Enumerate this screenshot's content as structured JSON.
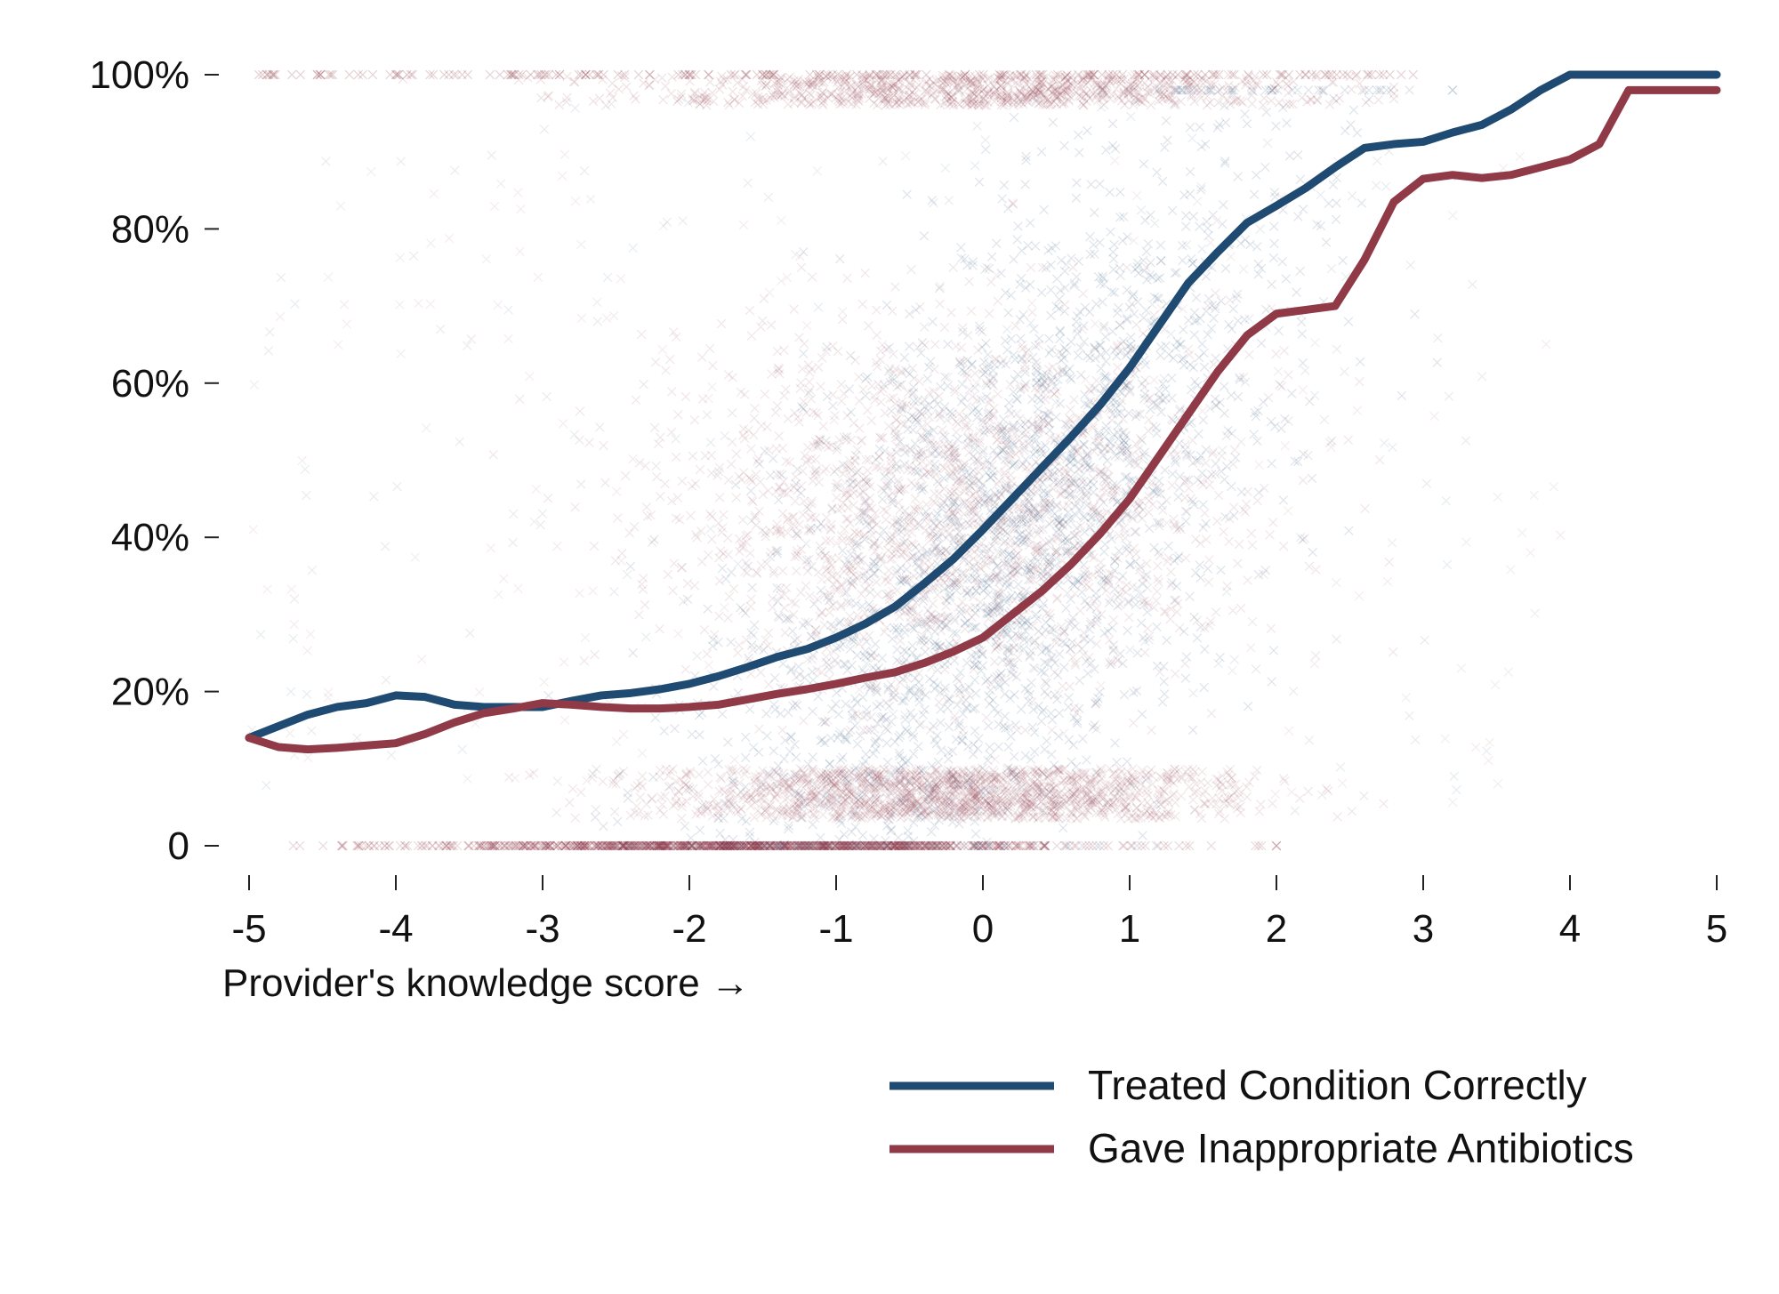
{
  "chart_data": {
    "type": "scatter",
    "title": "",
    "xlabel": "Provider's knowledge score →",
    "ylabel": "",
    "xlim": [
      -5,
      5
    ],
    "ylim": [
      0,
      1
    ],
    "grid": false,
    "legend_position": "bottom-right",
    "x_ticks": [
      "-5",
      "-4",
      "-3",
      "-2",
      "-1",
      "0",
      "1",
      "2",
      "3",
      "4",
      "5"
    ],
    "y_ticks": [
      "0",
      "20%",
      "40%",
      "60%",
      "80%",
      "100%"
    ],
    "colors": {
      "treated": "#1f4a72",
      "antibiotics": "#8f3a46"
    },
    "series": [
      {
        "name": "Treated Condition Correctly",
        "color": "#1f4a72",
        "marker": "x",
        "x": [
          -5.0,
          -4.8,
          -4.6,
          -4.4,
          -4.2,
          -4.0,
          -3.8,
          -3.6,
          -3.4,
          -3.2,
          -3.0,
          -2.8,
          -2.6,
          -2.4,
          -2.2,
          -2.0,
          -1.8,
          -1.6,
          -1.4,
          -1.2,
          -1.0,
          -0.8,
          -0.6,
          -0.4,
          -0.2,
          0.0,
          0.2,
          0.4,
          0.6,
          0.8,
          1.0,
          1.2,
          1.4,
          1.6,
          1.8,
          2.0,
          2.2,
          2.4,
          2.6,
          2.8,
          3.0,
          3.2,
          3.4,
          3.6,
          3.8,
          4.0,
          4.2,
          4.4,
          4.6,
          4.8,
          5.0
        ],
        "y": [
          0.14,
          0.155,
          0.17,
          0.18,
          0.185,
          0.195,
          0.193,
          0.183,
          0.18,
          0.18,
          0.18,
          0.188,
          0.195,
          0.198,
          0.203,
          0.21,
          0.22,
          0.232,
          0.245,
          0.255,
          0.27,
          0.288,
          0.31,
          0.34,
          0.372,
          0.41,
          0.45,
          0.49,
          0.53,
          0.572,
          0.62,
          0.675,
          0.73,
          0.77,
          0.808,
          0.83,
          0.853,
          0.88,
          0.905,
          0.91,
          0.913,
          0.925,
          0.935,
          0.955,
          0.98,
          1.0,
          1.0,
          1.0,
          1.0,
          1.0,
          1.0
        ]
      },
      {
        "name": "Gave Inappropriate Antibiotics",
        "color": "#8f3a46",
        "marker": "x",
        "x": [
          -5.0,
          -4.8,
          -4.6,
          -4.4,
          -4.2,
          -4.0,
          -3.8,
          -3.6,
          -3.4,
          -3.2,
          -3.0,
          -2.8,
          -2.6,
          -2.4,
          -2.2,
          -2.0,
          -1.8,
          -1.6,
          -1.4,
          -1.2,
          -1.0,
          -0.8,
          -0.6,
          -0.4,
          -0.2,
          0.0,
          0.2,
          0.4,
          0.6,
          0.8,
          1.0,
          1.2,
          1.4,
          1.6,
          1.8,
          2.0,
          2.2,
          2.4,
          2.6,
          2.8,
          3.0,
          3.2,
          3.4,
          3.6,
          3.8,
          4.0,
          4.2,
          4.4,
          4.6,
          4.8,
          5.0
        ],
        "y": [
          0.14,
          0.128,
          0.125,
          0.127,
          0.13,
          0.133,
          0.145,
          0.16,
          0.172,
          0.178,
          0.185,
          0.183,
          0.18,
          0.178,
          0.178,
          0.18,
          0.183,
          0.19,
          0.197,
          0.203,
          0.21,
          0.218,
          0.225,
          0.237,
          0.252,
          0.27,
          0.3,
          0.33,
          0.365,
          0.405,
          0.45,
          0.505,
          0.56,
          0.615,
          0.662,
          0.69,
          0.695,
          0.7,
          0.76,
          0.835,
          0.865,
          0.87,
          0.866,
          0.87,
          0.88,
          0.89,
          0.91,
          0.98,
          0.98,
          0.98,
          0.98
        ]
      }
    ]
  }
}
